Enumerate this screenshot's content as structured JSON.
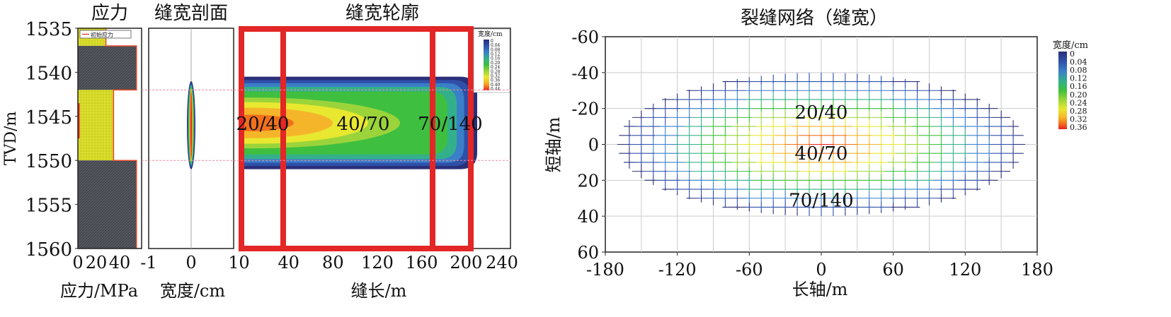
{
  "colors": {
    "scale": [
      "#2a2f78",
      "#2f4fa8",
      "#3a7fc8",
      "#33b08a",
      "#3fbf3f",
      "#9ad43a",
      "#e8e830",
      "#f5b52a",
      "#f2701c",
      "#e82222"
    ],
    "stress_fill": "#d9dc2a",
    "stress_dark": "#55585e",
    "stress_line": "#e84a2a",
    "pink_line": "#e88aa0",
    "red_box": "#e32626"
  },
  "panel_stress": {
    "title": "应力",
    "xlabel": "应力/MPa",
    "ylabel": "TVD/m",
    "legend": "初始应力"
  },
  "panel_profile": {
    "title": "缝宽剖面",
    "xlabel": "宽度/cm"
  },
  "panel_contour": {
    "title": "缝宽轮廓",
    "xlabel": "缝长/m",
    "labels": [
      "20/40",
      "40/70",
      "70/140"
    ],
    "cbar_title": "宽度/cm",
    "cbar_ticks": [
      "0",
      "0.04",
      "0.08",
      "0.12",
      "0.16",
      "0.20",
      "0.24",
      "0.28",
      "0.32",
      "0.36",
      "0.40",
      "0.44"
    ]
  },
  "panel_network": {
    "title": "裂缝网络（缝宽）",
    "xlabel": "长轴/m",
    "ylabel": "短轴/m",
    "labels": [
      "20/40",
      "40/70",
      "70/140"
    ],
    "cbar_title": "宽度/cm",
    "cbar_ticks": [
      "0",
      "0.04",
      "0.08",
      "0.12",
      "0.16",
      "0.20",
      "0.24",
      "0.28",
      "0.32",
      "0.36"
    ]
  },
  "chart_data": [
    {
      "type": "area",
      "name_hint": "stress",
      "title": "应力",
      "xlabel": "应力/MPa",
      "ylabel": "TVD/m",
      "xlim": [
        0,
        50
      ],
      "ylim": [
        1560,
        1535
      ],
      "xticks": [
        "0",
        "20",
        "40"
      ],
      "yticks": [
        "1535",
        "1540",
        "1545",
        "1550",
        "1555",
        "1560"
      ],
      "legend_entries": [
        "初始应力"
      ],
      "layers": [
        {
          "top": 1535,
          "bottom": 1537,
          "stress": 22,
          "fill": "sand"
        },
        {
          "top": 1537,
          "bottom": 1542,
          "stress": 46,
          "fill": "shale"
        },
        {
          "top": 1542,
          "bottom": 1550,
          "stress": 28,
          "fill": "sand"
        },
        {
          "top": 1550,
          "bottom": 1560,
          "stress": 46,
          "fill": "shale"
        }
      ],
      "interfaces": [
        1542,
        1550
      ]
    },
    {
      "type": "area",
      "title": "缝宽剖面",
      "xlabel": "宽度/cm",
      "xlim": [
        -1,
        1
      ],
      "ylim": [
        1560,
        1535
      ],
      "xticks": [
        "-1",
        "0",
        "1"
      ],
      "top": 1541.0,
      "bottom": 1551.0,
      "max_half_width": 0.1
    },
    {
      "type": "heatmap",
      "title": "缝宽轮廓",
      "xlabel": "缝长/m",
      "xlim": [
        0,
        240
      ],
      "ylim": [
        1560,
        1535
      ],
      "xticks": [
        "0",
        "40",
        "80",
        "120",
        "160",
        "200",
        "240"
      ],
      "fracture_length": 210,
      "fracture_top": 1540.5,
      "fracture_bottom": 1551.0,
      "colorbar": {
        "title": "宽度/cm",
        "min": 0,
        "max": 0.44
      },
      "proppant_zones": [
        {
          "label": "20/40",
          "x_from": 0,
          "x_to": 36
        },
        {
          "label": "40/70",
          "x_from": 36,
          "x_to": 170
        },
        {
          "label": "70/140",
          "x_from": 170,
          "x_to": 205
        }
      ]
    },
    {
      "type": "heatmap",
      "title": "裂缝网络（缝宽）",
      "xlabel": "长轴/m",
      "ylabel": "短轴/m",
      "xlim": [
        -180,
        180
      ],
      "ylim": [
        -60,
        60
      ],
      "xticks": [
        "-180",
        "-120",
        "-60",
        "0",
        "60",
        "120",
        "180"
      ],
      "yticks": [
        "-60",
        "-40",
        "-20",
        "0",
        "20",
        "40",
        "60"
      ],
      "semi_major": 170,
      "semi_minor": 40,
      "grid_spacing_x": 10,
      "grid_spacing_y": 5,
      "colorbar": {
        "title": "宽度/cm",
        "min": 0,
        "max": 0.36
      },
      "zone_labels": [
        {
          "label": "20/40",
          "x": 0,
          "y": -18
        },
        {
          "label": "40/70",
          "x": 0,
          "y": 5
        },
        {
          "label": "70/140",
          "x": 0,
          "y": 31
        }
      ]
    }
  ]
}
